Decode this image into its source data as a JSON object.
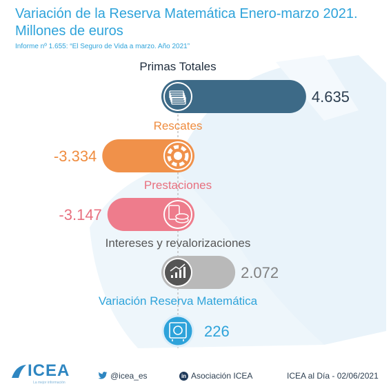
{
  "title_line1": "Variación de la Reserva Matemática Enero-marzo 2021.",
  "title_line2": "Millones de euros",
  "subtitle": "Informe nº 1.655: “El Seguro de Vida a marzo. Año 2021”",
  "colors": {
    "title": "#2ea3da",
    "primas": "#3d6a87",
    "rescates": "#f0914a",
    "prestaciones": "#ee7c8c",
    "intereses": "#b9b9b9",
    "variacion": "#2ea3da",
    "value_primas": "#2c3e50",
    "value_rescates": "#ef8c3f",
    "value_prestaciones": "#e8707f",
    "value_intereses": "#808080",
    "value_variacion": "#2ea3da"
  },
  "chart_data": {
    "type": "bar",
    "orientation": "horizontal",
    "categories": [
      "Primas Totales",
      "Rescates",
      "Prestaciones",
      "Intereses y revalorizaciones",
      "Variación Reserva Matemática"
    ],
    "values": [
      4635,
      -3334,
      -3147,
      2072,
      226
    ],
    "value_labels": [
      "4.635",
      "-3.334",
      "-3.147",
      "2.072",
      "226"
    ],
    "icons": [
      "money-stack-icon",
      "lifebuoy-icon",
      "calculator-coins-icon",
      "growth-chart-icon",
      "safe-icon"
    ],
    "unit": "Millones de euros"
  },
  "footer": {
    "logo_text": "ICEA",
    "logo_tagline": "La mejor información",
    "twitter": "@icea_es",
    "linkedin": "Asociación ICEA",
    "date": "ICEA al Día - 02/06/2021"
  }
}
